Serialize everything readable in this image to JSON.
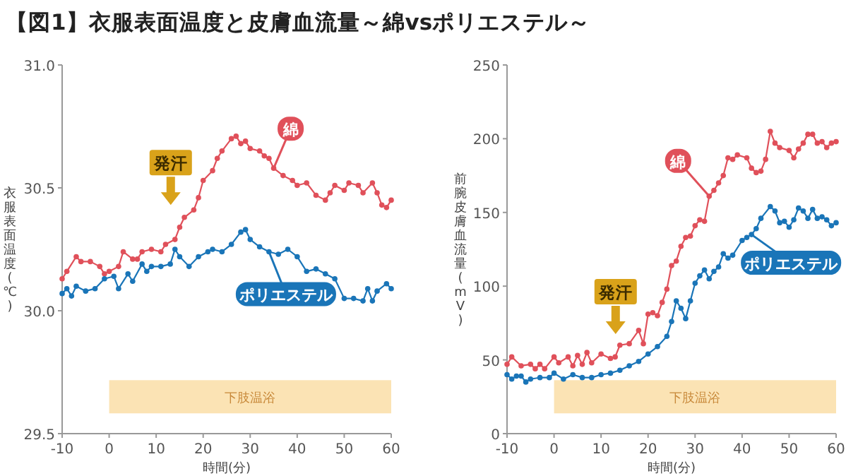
{
  "chart_data": [
    {
      "type": "line",
      "title": "【図1】衣服表面温度と皮膚血流量～綿vsポリエステル～",
      "xlabel": "時間(分)",
      "ylabel": "衣服表面温度(℃)",
      "xlim": [
        -10,
        60
      ],
      "xticks": [
        -10,
        0,
        10,
        20,
        30,
        40,
        50,
        60
      ],
      "ylim": [
        29.5,
        31.0
      ],
      "yticks": [
        {
          "value": 29.5,
          "label": "29.5"
        },
        {
          "value": 30.0,
          "label": "30.0"
        },
        {
          "value": 30.5,
          "label": "30.5"
        },
        {
          "value": 31.0,
          "label": "31.0"
        }
      ],
      "marker": "circle",
      "grid": false,
      "annotations": [
        "発汗"
      ],
      "bands": [
        {
          "axis": "x",
          "from": 0,
          "to": 60,
          "label": "下肢温浴",
          "color": "#fbe3b4"
        }
      ],
      "series": [
        {
          "name": "綿",
          "color": "#e0505a",
          "x": [
            -10,
            -9,
            -7,
            -6,
            -4,
            -2,
            -1,
            0,
            2,
            3,
            5,
            6,
            7,
            9,
            11,
            12,
            14,
            15,
            16,
            18,
            19,
            20,
            22,
            23,
            24,
            26,
            27,
            28,
            29,
            30,
            32,
            33,
            34,
            35,
            37,
            39,
            40,
            42,
            44,
            46,
            47,
            48,
            50,
            51,
            53,
            54,
            56,
            57,
            58,
            59,
            60
          ],
          "values": [
            30.13,
            30.16,
            30.22,
            30.2,
            30.2,
            30.18,
            30.15,
            30.16,
            30.18,
            30.24,
            30.21,
            30.21,
            30.24,
            30.25,
            30.24,
            30.27,
            30.29,
            30.34,
            30.38,
            30.41,
            30.46,
            30.53,
            30.57,
            30.62,
            30.65,
            30.7,
            30.71,
            30.68,
            30.69,
            30.66,
            30.65,
            30.63,
            30.62,
            30.58,
            30.55,
            30.53,
            30.51,
            30.52,
            30.47,
            30.45,
            30.48,
            30.51,
            30.49,
            30.52,
            30.51,
            30.48,
            30.52,
            30.48,
            30.43,
            30.42,
            30.45
          ]
        },
        {
          "name": "ポリエステル",
          "color": "#1a75b8",
          "x": [
            -10,
            -9,
            -8,
            -7,
            -5,
            -3,
            -1,
            1,
            2,
            4,
            5,
            7,
            8,
            9,
            11,
            13,
            14,
            15,
            17,
            19,
            21,
            22,
            24,
            26,
            28,
            29,
            30,
            32,
            34,
            36,
            38,
            40,
            42,
            44,
            46,
            48,
            50,
            52,
            54,
            55,
            56,
            57,
            59,
            60
          ],
          "values": [
            30.07,
            30.09,
            30.06,
            30.1,
            30.08,
            30.09,
            30.13,
            30.14,
            30.09,
            30.15,
            30.12,
            30.19,
            30.16,
            30.18,
            30.18,
            30.19,
            30.25,
            30.22,
            30.18,
            30.22,
            30.24,
            30.25,
            30.24,
            30.27,
            30.32,
            30.33,
            30.29,
            30.26,
            30.24,
            30.23,
            30.25,
            30.22,
            30.16,
            30.17,
            30.15,
            30.13,
            30.05,
            30.05,
            30.04,
            30.09,
            30.04,
            30.08,
            30.11,
            30.09
          ]
        }
      ]
    },
    {
      "type": "line",
      "xlabel": "時間(分)",
      "ylabel": "前腕皮膚血流量(mV)",
      "xlim": [
        -10,
        60
      ],
      "xticks": [
        -10,
        0,
        10,
        20,
        30,
        40,
        50,
        60
      ],
      "ylim": [
        0,
        250
      ],
      "yticks": [
        0,
        50,
        100,
        150,
        200,
        250
      ],
      "marker": "circle",
      "grid": false,
      "annotations": [
        "発汗"
      ],
      "bands": [
        {
          "axis": "x",
          "from": 0,
          "to": 60,
          "label": "下肢温浴",
          "color": "#fbe3b4"
        }
      ],
      "series": [
        {
          "name": "綿",
          "color": "#e0505a",
          "x": [
            -10,
            -9,
            -7,
            -5,
            -4,
            -3,
            -2,
            0,
            1,
            3,
            4,
            5,
            6,
            7,
            8,
            10,
            12,
            13,
            14,
            16,
            18,
            19,
            20,
            21,
            22,
            23,
            24,
            25,
            26,
            27,
            28,
            29,
            30,
            31,
            32,
            33,
            34,
            35,
            36,
            37,
            38,
            39,
            41,
            42,
            43,
            44,
            45,
            46,
            47,
            48,
            50,
            51,
            52,
            53,
            54,
            55,
            56,
            57,
            58,
            59,
            60
          ],
          "values": [
            47,
            52,
            46,
            47,
            44,
            47,
            44,
            52,
            48,
            52,
            46,
            53,
            47,
            55,
            48,
            54,
            51,
            52,
            60,
            61,
            70,
            61,
            81,
            82,
            80,
            89,
            98,
            114,
            117,
            127,
            133,
            134,
            141,
            145,
            144,
            161,
            165,
            170,
            175,
            187,
            186,
            189,
            187,
            180,
            177,
            178,
            186,
            205,
            197,
            194,
            192,
            187,
            193,
            197,
            203,
            203,
            197,
            198,
            194,
            197,
            198
          ]
        },
        {
          "name": "ポリエステル",
          "color": "#1a75b8",
          "x": [
            -10,
            -9,
            -8,
            -7,
            -6,
            -5,
            -3,
            -1,
            0,
            2,
            4,
            6,
            8,
            10,
            12,
            14,
            16,
            18,
            20,
            22,
            24,
            25,
            26,
            27,
            28,
            29,
            30,
            31,
            32,
            33,
            34,
            35,
            36,
            37,
            38,
            40,
            41,
            42,
            43,
            44,
            46,
            47,
            48,
            49,
            50,
            51,
            52,
            53,
            54,
            55,
            56,
            57,
            58,
            59,
            60
          ],
          "values": [
            40,
            37,
            39,
            39,
            35,
            37,
            38,
            38,
            41,
            37,
            40,
            38,
            38,
            40,
            41,
            43,
            46,
            49,
            54,
            59,
            66,
            76,
            90,
            85,
            78,
            90,
            102,
            107,
            111,
            105,
            110,
            113,
            122,
            119,
            121,
            131,
            133,
            135,
            139,
            146,
            154,
            151,
            143,
            144,
            140,
            145,
            153,
            151,
            146,
            152,
            146,
            147,
            145,
            141,
            143
          ]
        }
      ]
    }
  ]
}
